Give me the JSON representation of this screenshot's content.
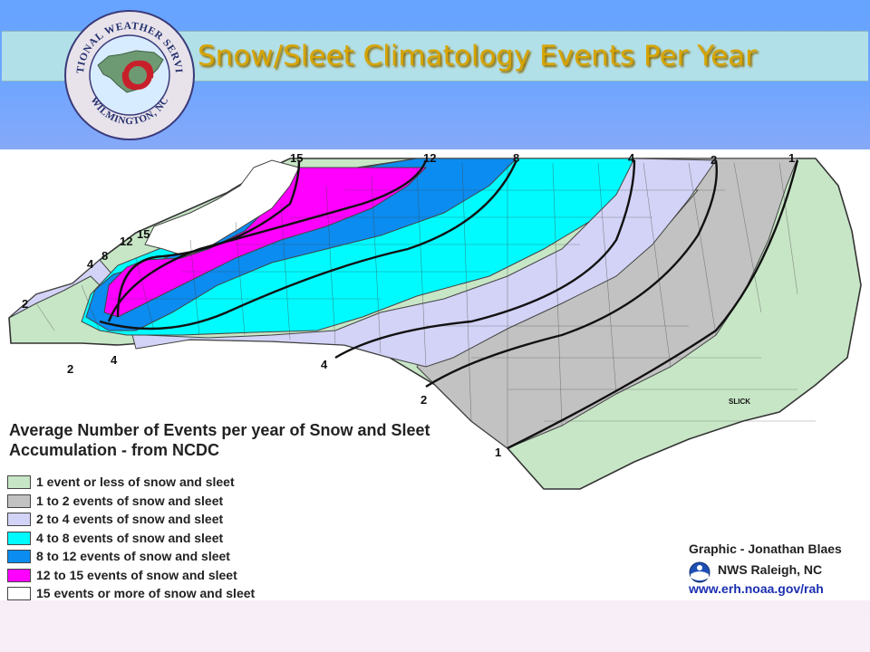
{
  "header": {
    "title": "Snow/Sleet Climatology Events Per Year",
    "seal": {
      "top_text": "NATIONAL WEATHER SERVICE",
      "bottom_text": "WILMINGTON, NC"
    }
  },
  "map": {
    "legend_title": "Average Number of Events per year of Snow and Sleet Accumulation - from NCDC",
    "legend": [
      {
        "label": "1 event or less of snow and sleet",
        "color": "#c7e6c6"
      },
      {
        "label": "1 to 2 events of snow and sleet",
        "color": "#c2c2c2"
      },
      {
        "label": "2 to 4 events of snow and sleet",
        "color": "#d2d3f6"
      },
      {
        "label": "4 to 8 events of snow and sleet",
        "color": "#00fbff"
      },
      {
        "label": "8 to 12 events of snow and sleet",
        "color": "#0b8cf0"
      },
      {
        "label": "12 to 15 events of snow and sleet",
        "color": "#ff00ff"
      },
      {
        "label": "15 events or more of snow and sleet",
        "color": "#ffffff"
      }
    ],
    "contour_labels": [
      "15",
      "12",
      "8",
      "4",
      "2",
      "1",
      "4",
      "8",
      "12",
      "15",
      "2",
      "2",
      "4",
      "4",
      "2",
      "1"
    ],
    "place_label": "SLICK",
    "credit": {
      "line1": "Graphic - Jonathan Blaes",
      "line2": "NWS Raleigh, NC",
      "line3": "www.erh.noaa.gov/rah"
    }
  }
}
